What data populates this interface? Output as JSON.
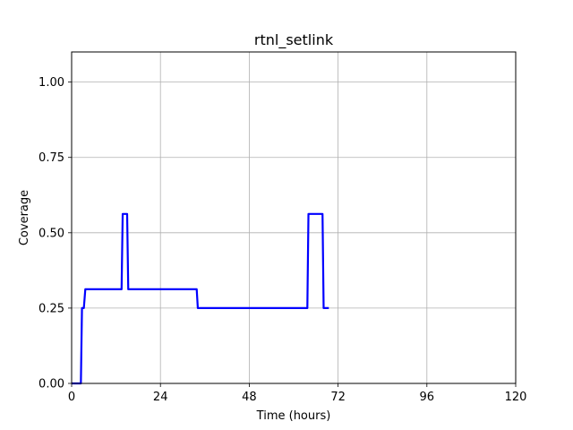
{
  "chart_data": {
    "type": "line",
    "title": "rtnl_setlink",
    "xlabel": "Time (hours)",
    "ylabel": "Coverage",
    "xlim": [
      0,
      120
    ],
    "ylim": [
      0,
      1.1
    ],
    "xticks": [
      0,
      24,
      48,
      72,
      96,
      120
    ],
    "yticks": [
      0.0,
      0.25,
      0.5,
      0.75,
      1.0
    ],
    "xtick_labels": [
      "0",
      "24",
      "48",
      "72",
      "96",
      "120"
    ],
    "ytick_labels": [
      "0.00",
      "0.25",
      "0.50",
      "0.75",
      "1.00"
    ],
    "grid": true,
    "series": [
      {
        "color": "#0000ff",
        "x": [
          0,
          2.5,
          2.8,
          3.3,
          3.7,
          13.5,
          13.8,
          15.0,
          15.3,
          33.8,
          34.1,
          63.7,
          64.0,
          67.8,
          68.1,
          69.5
        ],
        "y": [
          0,
          0,
          0.25,
          0.25,
          0.3125,
          0.3125,
          0.5625,
          0.5625,
          0.3125,
          0.3125,
          0.25,
          0.25,
          0.5625,
          0.5625,
          0.25,
          0.25
        ]
      }
    ]
  }
}
